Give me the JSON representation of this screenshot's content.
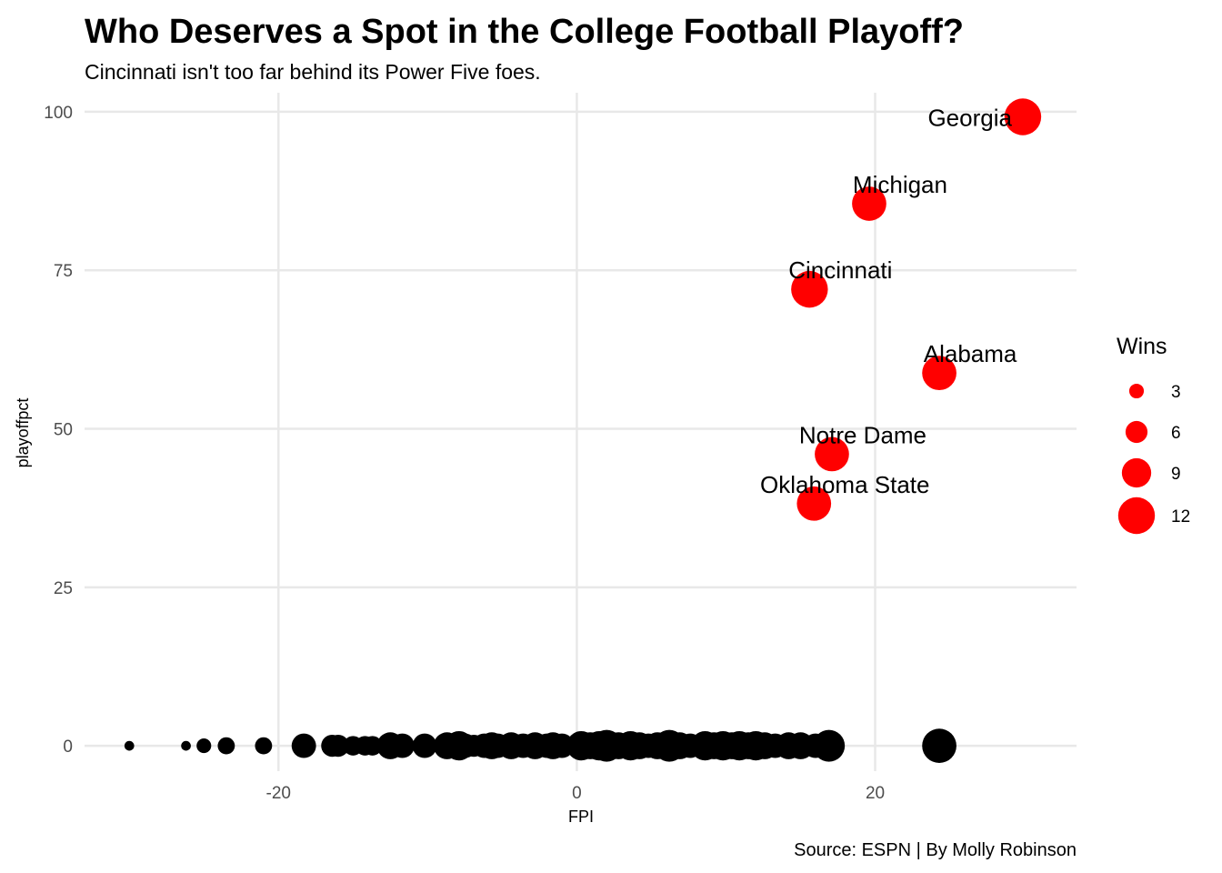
{
  "chart_data": {
    "type": "scatter",
    "title": "Who Deserves a Spot in the College Football Playoff?",
    "subtitle": "Cincinnati isn't too far behind its Power Five foes.",
    "caption": "Source: ESPN | By Molly Robinson",
    "xlabel": "FPI",
    "ylabel": "playoffpct",
    "xlim": [
      -33,
      33.5
    ],
    "ylim": [
      -4,
      103
    ],
    "x_ticks": [
      -20,
      0,
      20
    ],
    "y_ticks": [
      0,
      25,
      50,
      75,
      100
    ],
    "grid": true,
    "size_legend": {
      "title": "Wins",
      "values": [
        3,
        6,
        9,
        12
      ],
      "position": "right"
    },
    "colors": {
      "highlight": "#ff0000",
      "other": "#000000",
      "grid": "#e8e8e8"
    },
    "highlighted": [
      {
        "name": "Georgia",
        "x": 29.9,
        "y": 99.2,
        "wins": 12
      },
      {
        "name": "Michigan",
        "x": 19.6,
        "y": 85.5,
        "wins": 11
      },
      {
        "name": "Cincinnati",
        "x": 15.6,
        "y": 72.0,
        "wins": 12
      },
      {
        "name": "Alabama",
        "x": 24.3,
        "y": 58.8,
        "wins": 11
      },
      {
        "name": "Notre Dame",
        "x": 17.1,
        "y": 46.0,
        "wins": 11
      },
      {
        "name": "Oklahoma State",
        "x": 15.9,
        "y": 38.2,
        "wins": 11
      }
    ],
    "others": [
      {
        "x": -30.0,
        "y": 0,
        "wins": 1
      },
      {
        "x": -26.2,
        "y": 0,
        "wins": 1
      },
      {
        "x": -25.0,
        "y": 0,
        "wins": 3
      },
      {
        "x": -23.5,
        "y": 0,
        "wins": 4
      },
      {
        "x": -21.0,
        "y": 0,
        "wins": 4
      },
      {
        "x": -18.3,
        "y": 0,
        "wins": 7
      },
      {
        "x": -16.4,
        "y": 0,
        "wins": 6
      },
      {
        "x": -16.0,
        "y": 0,
        "wins": 6
      },
      {
        "x": -15.0,
        "y": 0,
        "wins": 5
      },
      {
        "x": -14.2,
        "y": 0,
        "wins": 5
      },
      {
        "x": -13.7,
        "y": 0,
        "wins": 5
      },
      {
        "x": -12.5,
        "y": 0,
        "wins": 8
      },
      {
        "x": -11.7,
        "y": 0,
        "wins": 7
      },
      {
        "x": -10.2,
        "y": 0,
        "wins": 7
      },
      {
        "x": -8.7,
        "y": 0,
        "wins": 8
      },
      {
        "x": -8.2,
        "y": 0,
        "wins": 7
      },
      {
        "x": -7.9,
        "y": 0,
        "wins": 9
      },
      {
        "x": -7.5,
        "y": 0,
        "wins": 7
      },
      {
        "x": -6.9,
        "y": 0,
        "wins": 6
      },
      {
        "x": -6.2,
        "y": 0,
        "wins": 7
      },
      {
        "x": -5.7,
        "y": 0,
        "wins": 8
      },
      {
        "x": -5.3,
        "y": 0,
        "wins": 7
      },
      {
        "x": -4.4,
        "y": 0,
        "wins": 8
      },
      {
        "x": -3.6,
        "y": 0,
        "wins": 7
      },
      {
        "x": -2.8,
        "y": 0,
        "wins": 8
      },
      {
        "x": -2.0,
        "y": 0,
        "wins": 7
      },
      {
        "x": -1.6,
        "y": 0,
        "wins": 8
      },
      {
        "x": -1.0,
        "y": 0,
        "wins": 7
      },
      {
        "x": 0.3,
        "y": 0,
        "wins": 9
      },
      {
        "x": 0.9,
        "y": 0,
        "wins": 8
      },
      {
        "x": 1.5,
        "y": 0,
        "wins": 9
      },
      {
        "x": 2.0,
        "y": 0,
        "wins": 10
      },
      {
        "x": 2.8,
        "y": 0,
        "wins": 8
      },
      {
        "x": 3.6,
        "y": 0,
        "wins": 9
      },
      {
        "x": 4.2,
        "y": 0,
        "wins": 8
      },
      {
        "x": 4.8,
        "y": 0,
        "wins": 7
      },
      {
        "x": 5.4,
        "y": 0,
        "wins": 8
      },
      {
        "x": 6.2,
        "y": 0,
        "wins": 10
      },
      {
        "x": 6.9,
        "y": 0,
        "wins": 8
      },
      {
        "x": 7.6,
        "y": 0,
        "wins": 7
      },
      {
        "x": 8.6,
        "y": 0,
        "wins": 9
      },
      {
        "x": 9.2,
        "y": 0,
        "wins": 8
      },
      {
        "x": 9.8,
        "y": 0,
        "wins": 9
      },
      {
        "x": 10.4,
        "y": 0,
        "wins": 8
      },
      {
        "x": 10.9,
        "y": 0,
        "wins": 9
      },
      {
        "x": 11.5,
        "y": 0,
        "wins": 8
      },
      {
        "x": 12.0,
        "y": 0,
        "wins": 9
      },
      {
        "x": 12.6,
        "y": 0,
        "wins": 8
      },
      {
        "x": 13.3,
        "y": 0,
        "wins": 7
      },
      {
        "x": 14.2,
        "y": 0,
        "wins": 8
      },
      {
        "x": 15.0,
        "y": 0,
        "wins": 8
      },
      {
        "x": 16.0,
        "y": 0,
        "wins": 7
      },
      {
        "x": 16.9,
        "y": 0,
        "wins": 10
      },
      {
        "x": 24.3,
        "y": 0,
        "wins": 11
      }
    ]
  }
}
